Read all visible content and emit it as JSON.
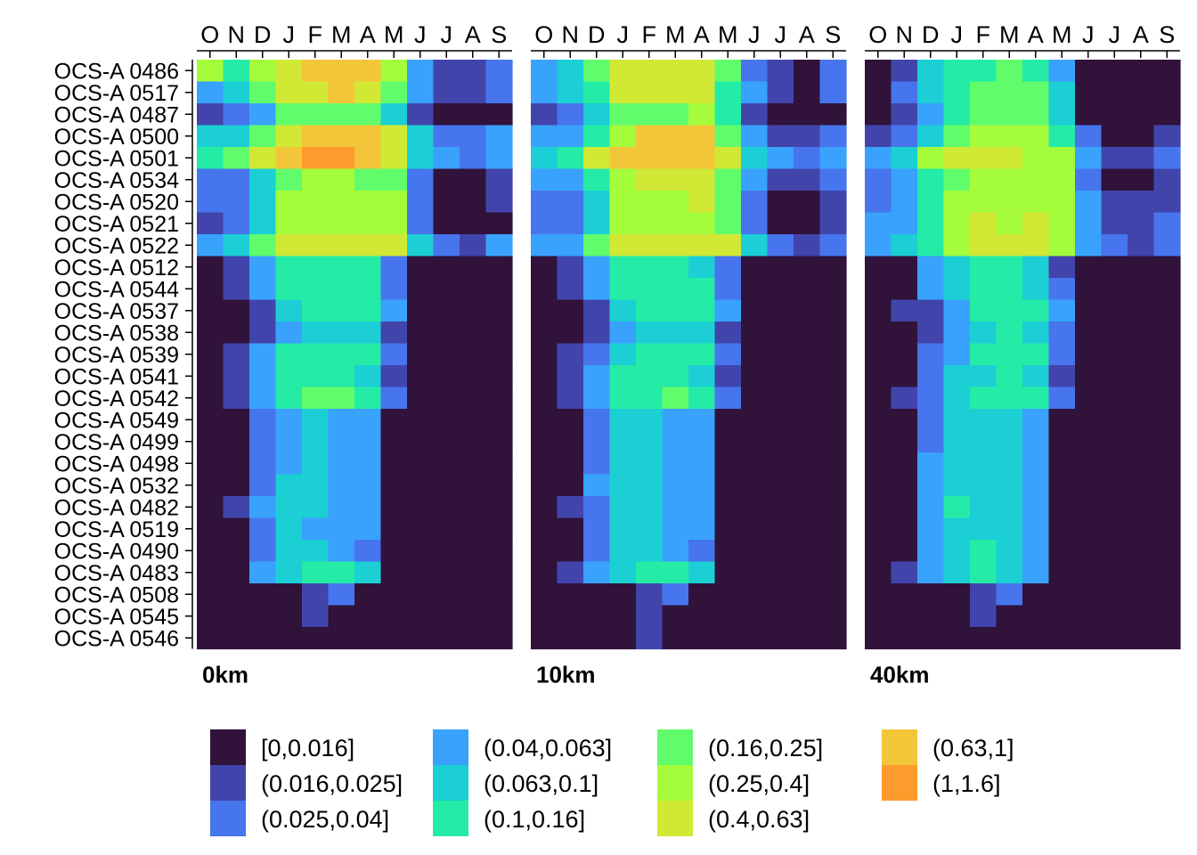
{
  "chart_data": {
    "type": "heatmap",
    "x_labels": [
      "O",
      "N",
      "D",
      "J",
      "F",
      "M",
      "A",
      "M",
      "J",
      "J",
      "A",
      "S"
    ],
    "rows": [
      "OCS-A 0486",
      "OCS-A 0517",
      "OCS-A 0487",
      "OCS-A 0500",
      "OCS-A 0501",
      "OCS-A 0534",
      "OCS-A 0520",
      "OCS-A 0521",
      "OCS-A 0522",
      "OCS-A 0512",
      "OCS-A 0544",
      "OCS-A 0537",
      "OCS-A 0538",
      "OCS-A 0539",
      "OCS-A 0541",
      "OCS-A 0542",
      "OCS-A 0549",
      "OCS-A 0499",
      "OCS-A 0498",
      "OCS-A 0532",
      "OCS-A 0482",
      "OCS-A 0519",
      "OCS-A 0490",
      "OCS-A 0483",
      "OCS-A 0508",
      "OCS-A 0545",
      "OCS-A 0546"
    ],
    "legend": {
      "bins": [
        "[0,0.016]",
        "(0.016,0.025]",
        "(0.025,0.04]",
        "(0.04,0.063]",
        "(0.063,0.1]",
        "(0.1,0.16]",
        "(0.16,0.25]",
        "(0.25,0.4]",
        "(0.4,0.63]",
        "(0.63,1]",
        "(1,1.6]"
      ],
      "colors": [
        "#30123b",
        "#4145ab",
        "#4675ed",
        "#39a2fc",
        "#1bcfd4",
        "#24eca6",
        "#61fc6c",
        "#a4fc3b",
        "#d1e834",
        "#f3c63a",
        "#fe9b2d"
      ]
    },
    "panels": [
      {
        "label": "0km",
        "bins": [
          [
            7,
            5,
            7,
            8,
            9,
            9,
            9,
            7,
            3,
            1,
            1,
            2
          ],
          [
            3,
            4,
            6,
            8,
            8,
            9,
            8,
            6,
            3,
            1,
            1,
            2
          ],
          [
            1,
            2,
            3,
            6,
            6,
            6,
            6,
            4,
            1,
            0,
            0,
            0
          ],
          [
            4,
            4,
            6,
            8,
            9,
            9,
            9,
            8,
            4,
            2,
            2,
            3
          ],
          [
            5,
            6,
            8,
            9,
            10,
            10,
            9,
            8,
            4,
            3,
            2,
            3
          ],
          [
            2,
            2,
            4,
            6,
            7,
            7,
            6,
            6,
            2,
            0,
            0,
            1
          ],
          [
            2,
            2,
            4,
            7,
            7,
            7,
            7,
            7,
            2,
            0,
            0,
            1
          ],
          [
            1,
            2,
            4,
            7,
            7,
            7,
            7,
            7,
            2,
            0,
            0,
            0
          ],
          [
            3,
            4,
            6,
            8,
            8,
            8,
            8,
            8,
            4,
            2,
            1,
            3
          ],
          [
            0,
            1,
            3,
            5,
            5,
            5,
            5,
            2,
            0,
            0,
            0,
            0
          ],
          [
            0,
            1,
            3,
            5,
            5,
            5,
            5,
            2,
            0,
            0,
            0,
            0
          ],
          [
            0,
            0,
            1,
            4,
            5,
            5,
            5,
            3,
            0,
            0,
            0,
            0
          ],
          [
            0,
            0,
            1,
            3,
            4,
            4,
            4,
            1,
            0,
            0,
            0,
            0
          ],
          [
            0,
            1,
            3,
            5,
            5,
            5,
            5,
            2,
            0,
            0,
            0,
            0
          ],
          [
            0,
            1,
            3,
            5,
            5,
            5,
            4,
            1,
            0,
            0,
            0,
            0
          ],
          [
            0,
            1,
            3,
            5,
            6,
            6,
            5,
            2,
            0,
            0,
            0,
            0
          ],
          [
            0,
            0,
            2,
            3,
            4,
            3,
            3,
            0,
            0,
            0,
            0,
            0
          ],
          [
            0,
            0,
            2,
            3,
            4,
            3,
            3,
            0,
            0,
            0,
            0,
            0
          ],
          [
            0,
            0,
            2,
            3,
            4,
            3,
            3,
            0,
            0,
            0,
            0,
            0
          ],
          [
            0,
            0,
            2,
            4,
            4,
            3,
            3,
            0,
            0,
            0,
            0,
            0
          ],
          [
            0,
            1,
            3,
            4,
            4,
            3,
            3,
            0,
            0,
            0,
            0,
            0
          ],
          [
            0,
            0,
            2,
            4,
            3,
            3,
            3,
            0,
            0,
            0,
            0,
            0
          ],
          [
            0,
            0,
            2,
            4,
            4,
            3,
            2,
            0,
            0,
            0,
            0,
            0
          ],
          [
            0,
            0,
            3,
            4,
            5,
            5,
            4,
            0,
            0,
            0,
            0,
            0
          ],
          [
            0,
            0,
            0,
            0,
            1,
            2,
            0,
            0,
            0,
            0,
            0,
            0
          ],
          [
            0,
            0,
            0,
            0,
            1,
            0,
            0,
            0,
            0,
            0,
            0,
            0
          ],
          [
            0,
            0,
            0,
            0,
            0,
            0,
            0,
            0,
            0,
            0,
            0,
            0
          ]
        ]
      },
      {
        "label": "10km",
        "bins": [
          [
            3,
            4,
            6,
            8,
            8,
            8,
            8,
            6,
            2,
            1,
            0,
            2
          ],
          [
            3,
            4,
            5,
            8,
            8,
            8,
            8,
            5,
            3,
            1,
            0,
            2
          ],
          [
            1,
            2,
            4,
            6,
            6,
            6,
            7,
            5,
            1,
            0,
            0,
            0
          ],
          [
            3,
            3,
            5,
            7,
            9,
            9,
            9,
            6,
            3,
            1,
            1,
            2
          ],
          [
            4,
            5,
            8,
            9,
            9,
            9,
            9,
            8,
            4,
            3,
            2,
            3
          ],
          [
            3,
            3,
            5,
            7,
            8,
            8,
            8,
            6,
            3,
            1,
            1,
            2
          ],
          [
            2,
            2,
            4,
            7,
            7,
            7,
            8,
            6,
            2,
            0,
            0,
            1
          ],
          [
            2,
            2,
            4,
            7,
            7,
            7,
            7,
            6,
            2,
            0,
            0,
            1
          ],
          [
            3,
            3,
            6,
            8,
            8,
            8,
            8,
            8,
            4,
            2,
            1,
            2
          ],
          [
            0,
            1,
            3,
            5,
            5,
            5,
            4,
            2,
            0,
            0,
            0,
            0
          ],
          [
            0,
            1,
            3,
            5,
            5,
            5,
            5,
            2,
            0,
            0,
            0,
            0
          ],
          [
            0,
            0,
            1,
            4,
            5,
            5,
            5,
            3,
            0,
            0,
            0,
            0
          ],
          [
            0,
            0,
            1,
            3,
            4,
            4,
            4,
            1,
            0,
            0,
            0,
            0
          ],
          [
            0,
            1,
            2,
            4,
            5,
            5,
            5,
            2,
            0,
            0,
            0,
            0
          ],
          [
            0,
            1,
            3,
            5,
            5,
            5,
            4,
            1,
            0,
            0,
            0,
            0
          ],
          [
            0,
            1,
            3,
            5,
            5,
            6,
            5,
            2,
            0,
            0,
            0,
            0
          ],
          [
            0,
            0,
            2,
            4,
            4,
            3,
            3,
            0,
            0,
            0,
            0,
            0
          ],
          [
            0,
            0,
            2,
            4,
            4,
            3,
            3,
            0,
            0,
            0,
            0,
            0
          ],
          [
            0,
            0,
            2,
            4,
            4,
            3,
            3,
            0,
            0,
            0,
            0,
            0
          ],
          [
            0,
            0,
            3,
            4,
            4,
            3,
            3,
            0,
            0,
            0,
            0,
            0
          ],
          [
            0,
            1,
            2,
            4,
            4,
            3,
            3,
            0,
            0,
            0,
            0,
            0
          ],
          [
            0,
            0,
            2,
            4,
            4,
            3,
            3,
            0,
            0,
            0,
            0,
            0
          ],
          [
            0,
            0,
            2,
            4,
            4,
            3,
            2,
            0,
            0,
            0,
            0,
            0
          ],
          [
            0,
            1,
            3,
            4,
            5,
            5,
            4,
            0,
            0,
            0,
            0,
            0
          ],
          [
            0,
            0,
            0,
            0,
            1,
            2,
            0,
            0,
            0,
            0,
            0,
            0
          ],
          [
            0,
            0,
            0,
            0,
            1,
            0,
            0,
            0,
            0,
            0,
            0,
            0
          ],
          [
            0,
            0,
            0,
            0,
            1,
            0,
            0,
            0,
            0,
            0,
            0,
            0
          ]
        ]
      },
      {
        "label": "40km",
        "bins": [
          [
            0,
            1,
            4,
            5,
            5,
            6,
            5,
            3,
            0,
            0,
            0,
            0
          ],
          [
            0,
            2,
            4,
            5,
            6,
            6,
            6,
            4,
            0,
            0,
            0,
            0
          ],
          [
            0,
            1,
            3,
            5,
            6,
            6,
            6,
            4,
            0,
            0,
            0,
            0
          ],
          [
            1,
            2,
            4,
            6,
            7,
            7,
            7,
            5,
            2,
            0,
            0,
            1
          ],
          [
            3,
            4,
            7,
            8,
            8,
            8,
            7,
            7,
            3,
            1,
            1,
            2
          ],
          [
            2,
            3,
            5,
            6,
            7,
            7,
            7,
            7,
            2,
            0,
            0,
            1
          ],
          [
            2,
            3,
            5,
            7,
            7,
            7,
            7,
            7,
            3,
            1,
            1,
            1
          ],
          [
            3,
            3,
            5,
            7,
            8,
            7,
            8,
            7,
            3,
            1,
            1,
            2
          ],
          [
            3,
            4,
            5,
            7,
            8,
            8,
            8,
            7,
            3,
            2,
            1,
            2
          ],
          [
            0,
            0,
            3,
            4,
            5,
            5,
            4,
            1,
            0,
            0,
            0,
            0
          ],
          [
            0,
            0,
            3,
            4,
            5,
            5,
            4,
            2,
            0,
            0,
            0,
            0
          ],
          [
            0,
            1,
            1,
            3,
            5,
            5,
            5,
            3,
            0,
            0,
            0,
            0
          ],
          [
            0,
            0,
            1,
            3,
            4,
            5,
            4,
            2,
            0,
            0,
            0,
            0
          ],
          [
            0,
            0,
            2,
            3,
            5,
            5,
            5,
            2,
            0,
            0,
            0,
            0
          ],
          [
            0,
            0,
            2,
            4,
            4,
            5,
            4,
            1,
            0,
            0,
            0,
            0
          ],
          [
            0,
            1,
            2,
            4,
            5,
            5,
            5,
            2,
            0,
            0,
            0,
            0
          ],
          [
            0,
            0,
            2,
            4,
            4,
            4,
            3,
            0,
            0,
            0,
            0,
            0
          ],
          [
            0,
            0,
            2,
            4,
            4,
            4,
            3,
            0,
            0,
            0,
            0,
            0
          ],
          [
            0,
            0,
            3,
            4,
            4,
            4,
            3,
            0,
            0,
            0,
            0,
            0
          ],
          [
            0,
            0,
            3,
            4,
            4,
            4,
            3,
            0,
            0,
            0,
            0,
            0
          ],
          [
            0,
            0,
            3,
            5,
            4,
            4,
            3,
            0,
            0,
            0,
            0,
            0
          ],
          [
            0,
            0,
            3,
            4,
            4,
            4,
            3,
            0,
            0,
            0,
            0,
            0
          ],
          [
            0,
            0,
            3,
            4,
            5,
            4,
            3,
            0,
            0,
            0,
            0,
            0
          ],
          [
            0,
            1,
            3,
            4,
            5,
            4,
            3,
            0,
            0,
            0,
            0,
            0
          ],
          [
            0,
            0,
            0,
            0,
            1,
            2,
            0,
            0,
            0,
            0,
            0,
            0
          ],
          [
            0,
            0,
            0,
            0,
            1,
            0,
            0,
            0,
            0,
            0,
            0,
            0
          ],
          [
            0,
            0,
            0,
            0,
            0,
            0,
            0,
            0,
            0,
            0,
            0,
            0
          ]
        ]
      }
    ]
  }
}
